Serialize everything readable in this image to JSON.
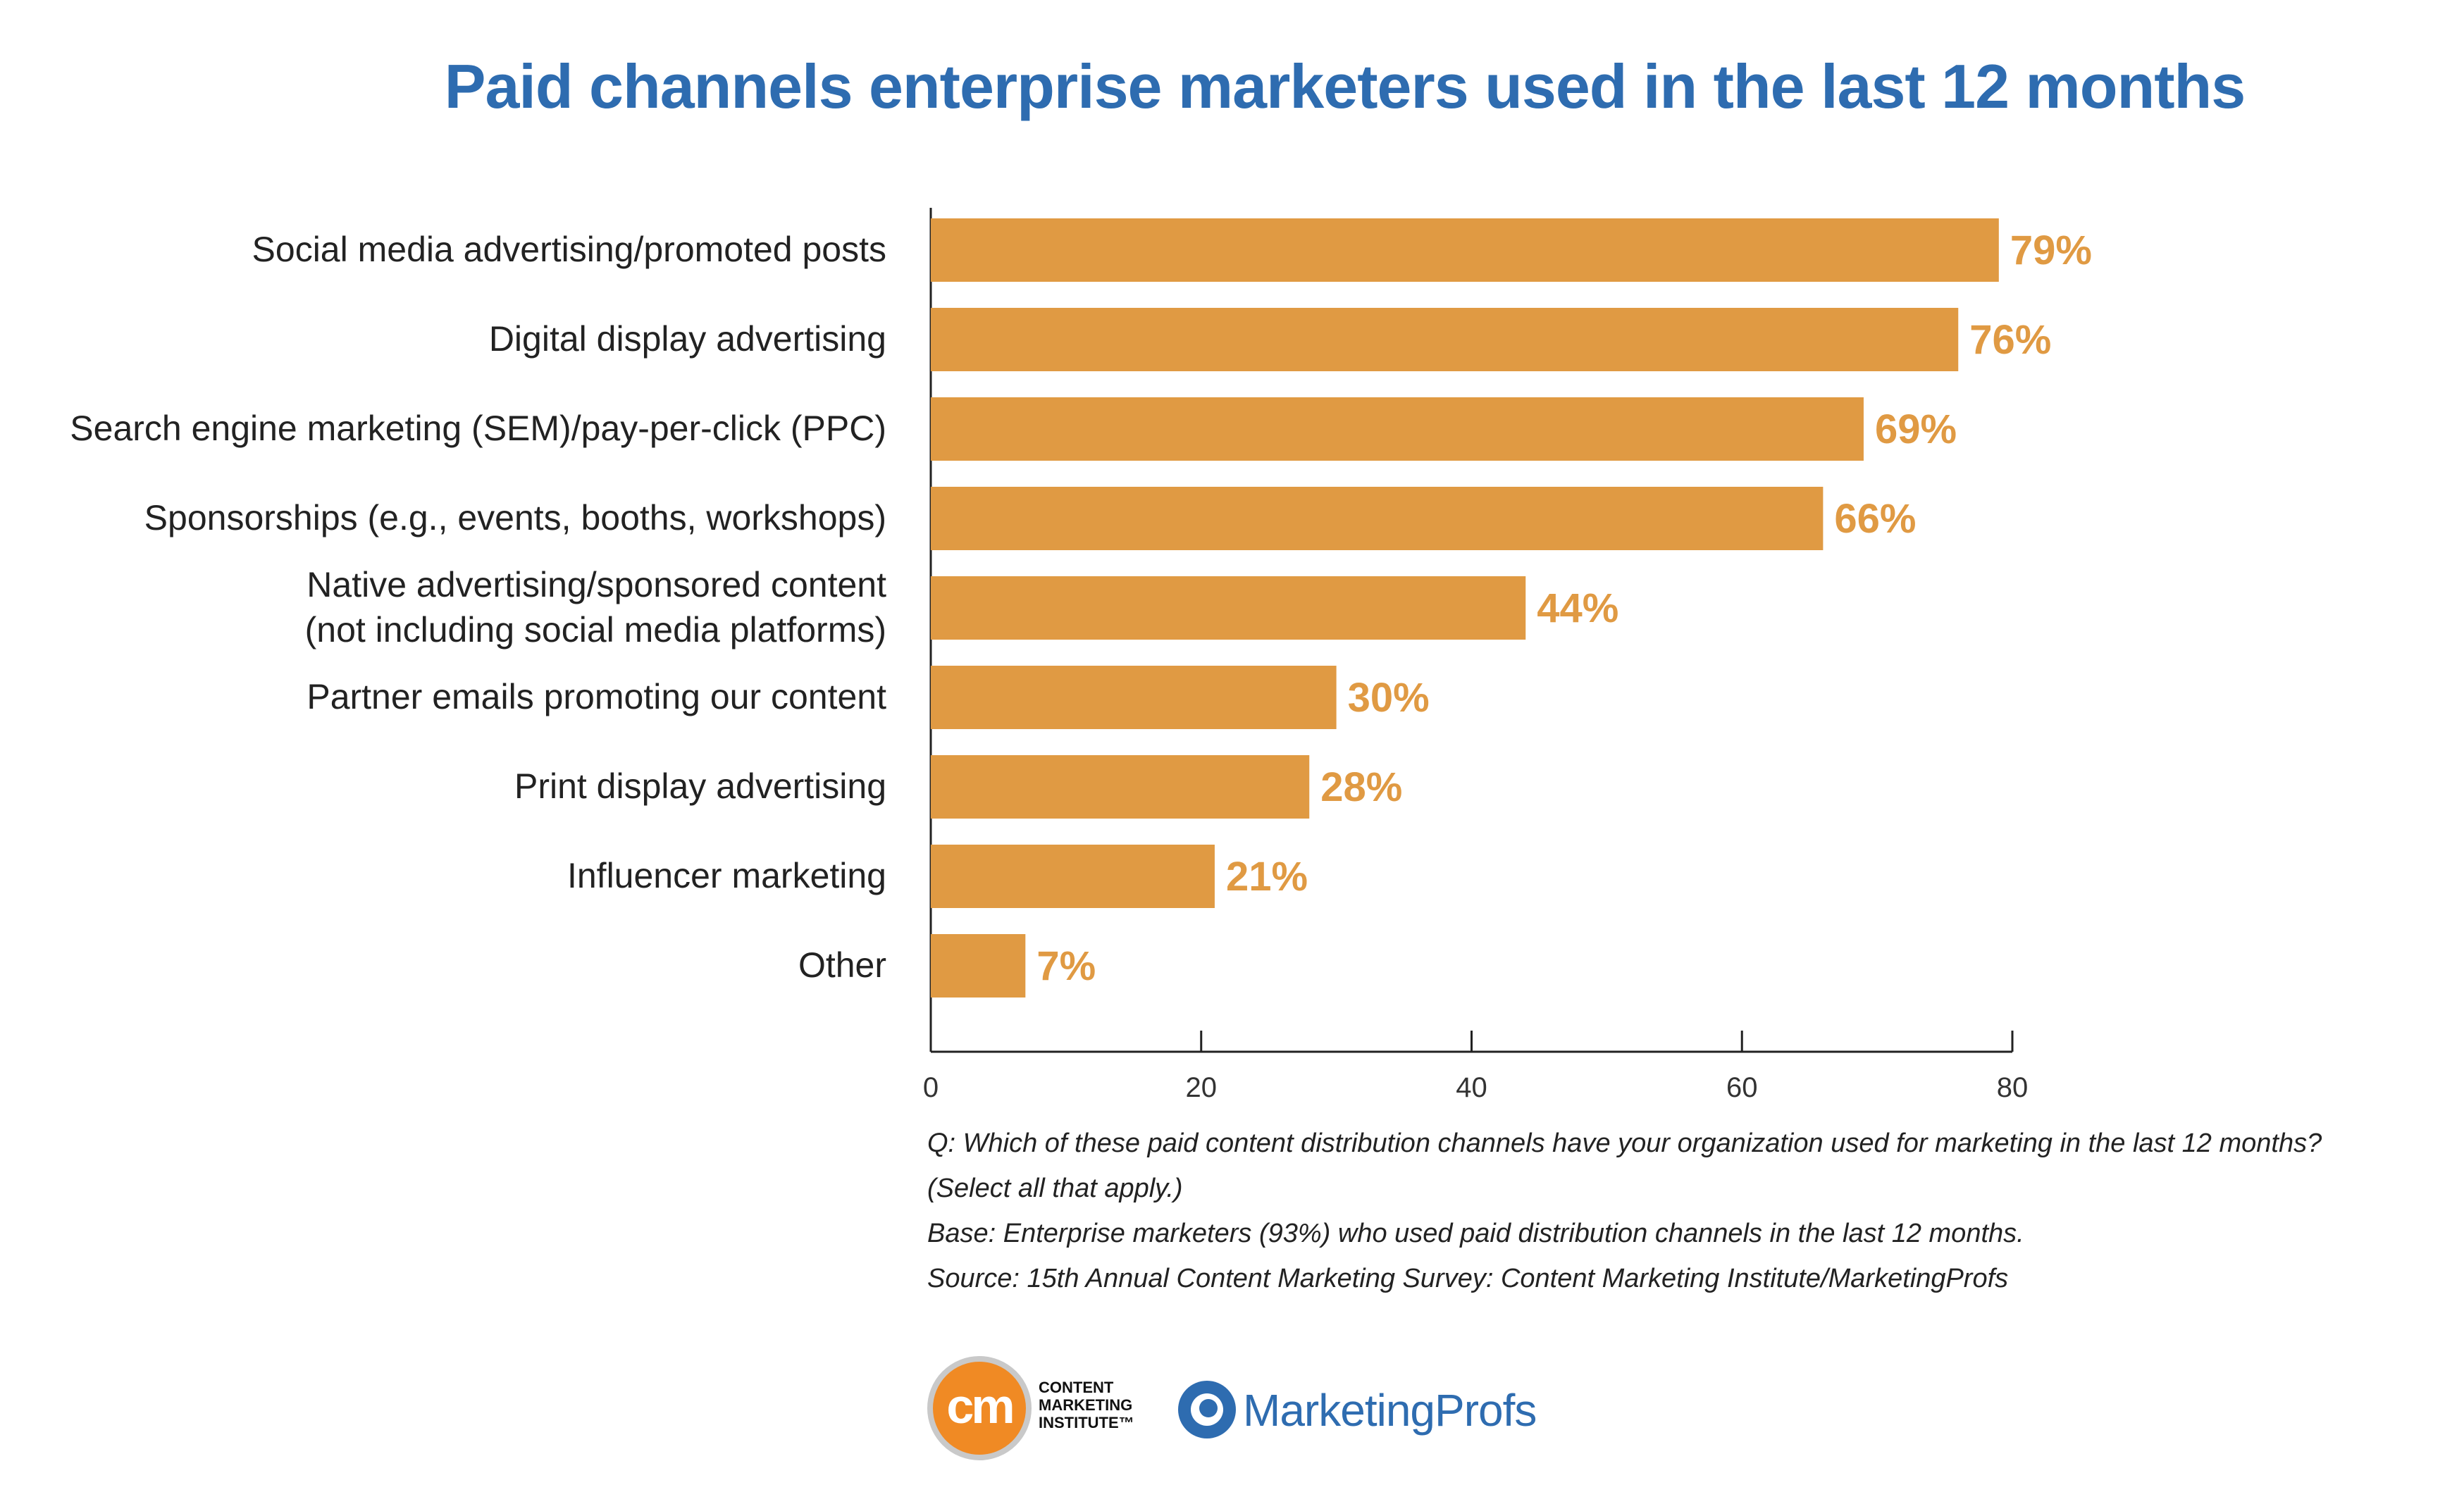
{
  "chart_data": {
    "type": "bar",
    "orientation": "horizontal",
    "title": "Paid channels enterprise marketers used in the last 12 months",
    "categories": [
      "Social media advertising/promoted posts",
      "Digital display advertising",
      "Search engine marketing (SEM)/pay-per-click (PPC)",
      "Sponsorships (e.g., events, booths, workshops)",
      "Native advertising/sponsored content\n(not including social media platforms)",
      "Partner emails promoting our content",
      "Print display advertising",
      "Influencer marketing",
      "Other"
    ],
    "values": [
      79,
      76,
      69,
      66,
      44,
      30,
      28,
      21,
      7
    ],
    "value_labels": [
      "79%",
      "76%",
      "69%",
      "66%",
      "44%",
      "30%",
      "28%",
      "21%",
      "7%"
    ],
    "xlim": [
      0,
      80
    ],
    "xticks": [
      0,
      20,
      40,
      60,
      80
    ],
    "xlabel": "",
    "ylabel": "",
    "grid": false,
    "bar_color": "#e09a43",
    "label_color": "#e09a43"
  },
  "notes": {
    "question_line1": "Q: Which of these paid content distribution channels have your organization used for marketing in the last 12 months?",
    "question_line2": "(Select all that apply.)",
    "base": "Base: Enterprise marketers (93%) who used paid distribution channels in the last 12 months.",
    "source": "Source: 15th Annual Content Marketing Survey: Content Marketing Institute/MarketingProfs"
  },
  "logos": {
    "cmi_mark": "cm",
    "cmi_line1": "CONTENT",
    "cmi_line2": "MARKETING",
    "cmi_line3": "INSTITUTE™",
    "mp_name": "MarketingProfs",
    "cmi_color": "#f08a24",
    "mp_color": "#2e6cb0"
  }
}
